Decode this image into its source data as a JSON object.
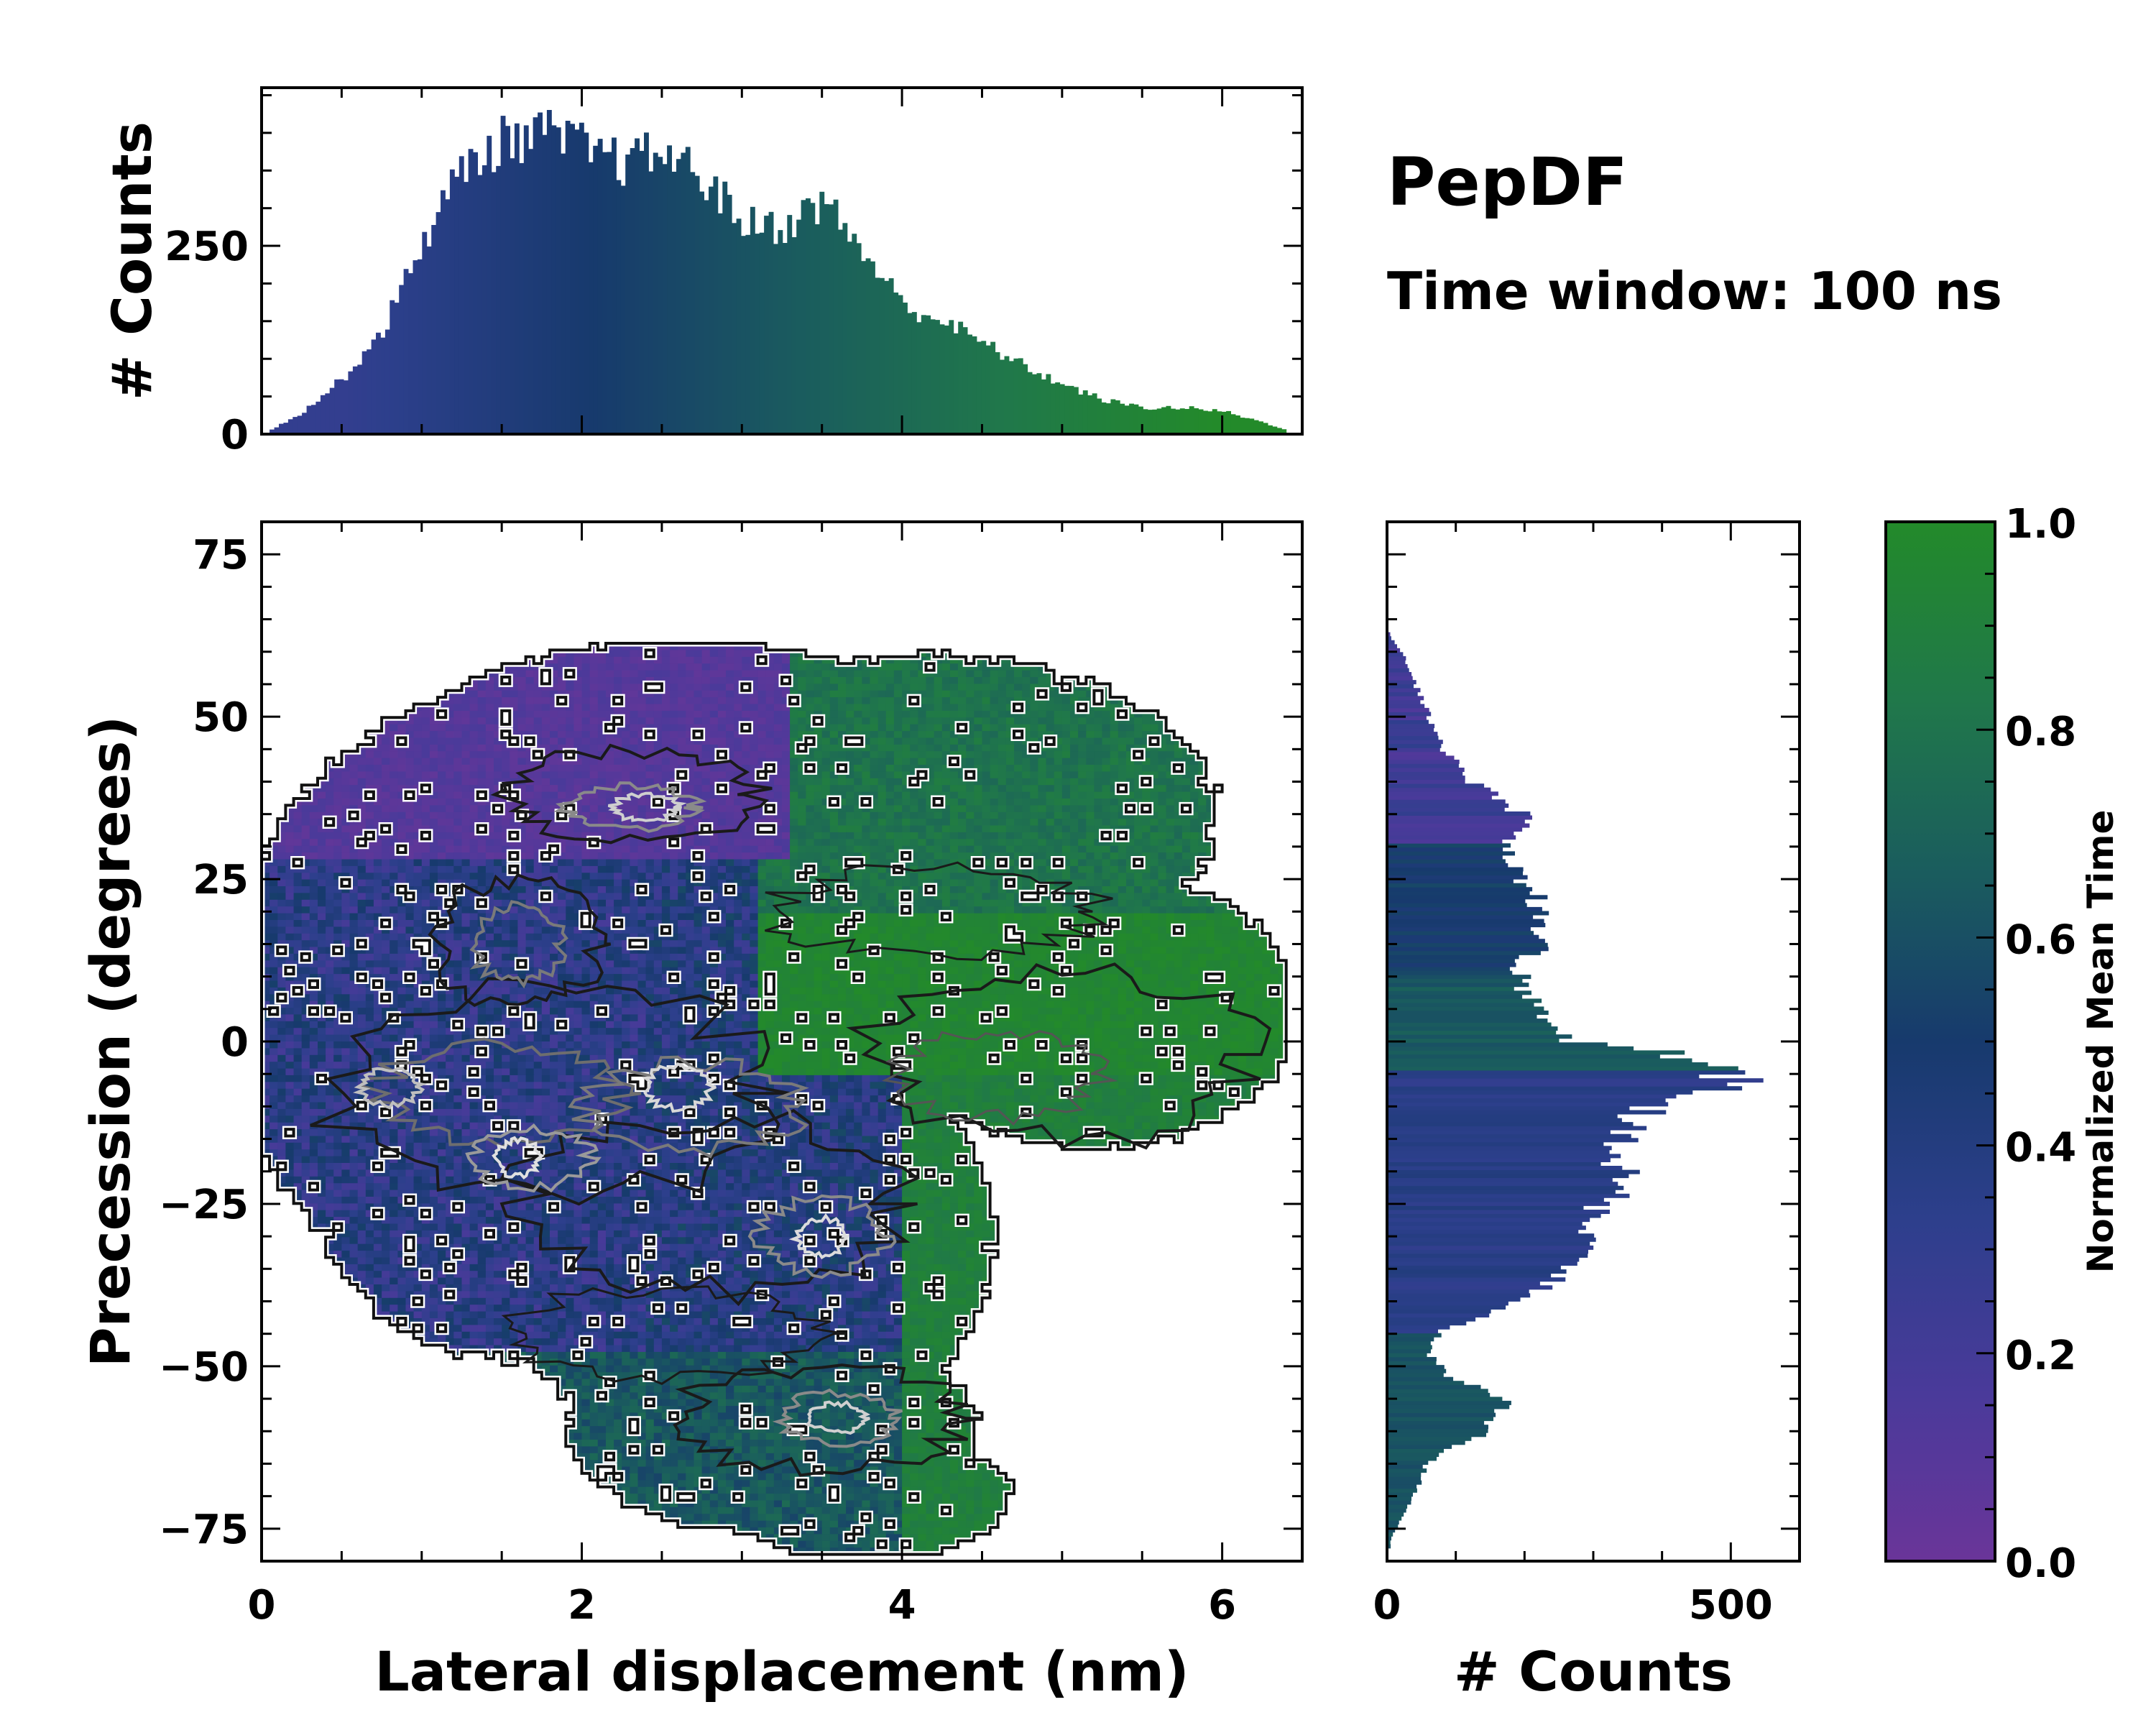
{
  "chart_data": {
    "type": "heatmap",
    "title": "PepDF",
    "subtitle": "Time window: 100 ns",
    "xlabel": "Lateral displacement (nm)",
    "ylabel": "Precession (degrees)",
    "xlim": [
      0,
      6.5
    ],
    "ylim": [
      -80,
      80
    ],
    "x_ticks": [
      "0",
      "2",
      "4",
      "6"
    ],
    "y_ticks": [
      "−75",
      "−50",
      "−25",
      "0",
      "25",
      "50",
      "75"
    ],
    "colorbar": {
      "label": "Normalized Mean Time",
      "range": [
        0,
        1
      ],
      "ticks": [
        "0.0",
        "0.2",
        "0.4",
        "0.6",
        "0.8",
        "1.0"
      ],
      "colors": [
        "#6a3599",
        "#4a3a9a",
        "#2d3f8c",
        "#173a6d",
        "#1a5c5e",
        "#20784a",
        "#238a2a"
      ]
    },
    "marginal_x": {
      "ylabel": "# Counts",
      "y_ticks": [
        "0",
        "250"
      ],
      "ylim": [
        0,
        460
      ],
      "x": [
        0.0,
        0.25,
        0.5,
        0.75,
        1.0,
        1.25,
        1.5,
        1.75,
        2.0,
        2.25,
        2.5,
        2.75,
        3.0,
        3.25,
        3.5,
        3.75,
        4.0,
        4.25,
        4.5,
        4.75,
        5.0,
        5.25,
        5.5,
        5.75,
        6.0,
        6.25,
        6.4
      ],
      "counts": [
        0,
        30,
        75,
        140,
        260,
        355,
        390,
        400,
        380,
        360,
        375,
        340,
        280,
        275,
        310,
        240,
        170,
        150,
        120,
        90,
        65,
        45,
        35,
        35,
        30,
        15,
        5
      ]
    },
    "marginal_y": {
      "xlabel": "# Counts",
      "x_ticks": [
        "0",
        "500"
      ],
      "xlim": [
        0,
        600
      ],
      "y": [
        -77,
        -70,
        -65,
        -60,
        -55,
        -52,
        -48,
        -45,
        -40,
        -35,
        -30,
        -25,
        -20,
        -15,
        -10,
        -7,
        -5,
        -2,
        0,
        5,
        10,
        15,
        20,
        25,
        30,
        33,
        35,
        40,
        45,
        50,
        55,
        60,
        62
      ],
      "counts": [
        5,
        40,
        60,
        150,
        170,
        90,
        60,
        75,
        210,
        280,
        300,
        320,
        340,
        350,
        380,
        520,
        490,
        400,
        250,
        210,
        190,
        220,
        220,
        200,
        170,
        200,
        190,
        120,
        80,
        60,
        40,
        20,
        5
      ]
    },
    "contours": "density contours (white outer boundary, black and grey inner levels)"
  }
}
